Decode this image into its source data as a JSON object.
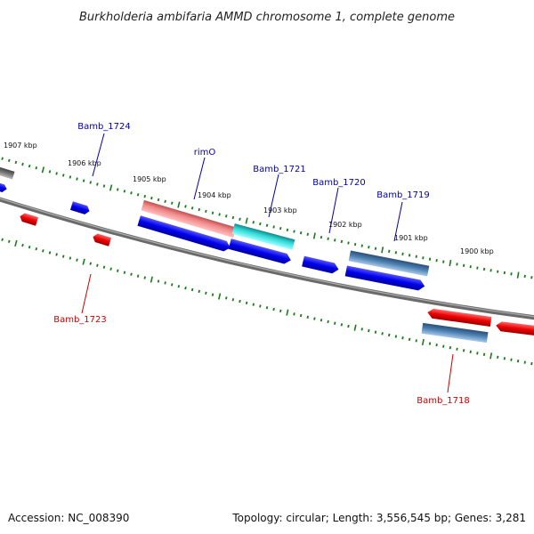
{
  "title": "Burkholderia ambifaria AMMD chromosome 1, complete genome",
  "footer": {
    "accession": "Accession: NC_008390",
    "stats": "Topology: circular; Length: 3,556,545 bp; Genes: 3,281"
  },
  "colors": {
    "forward_cds": "#0000ee",
    "reverse_cds": "#ee0000",
    "rrna_like": "#f08080",
    "trna_like": "#22cccc",
    "pseudo": "#4a7fb0",
    "backbone": "#808080",
    "ticks": "#1a7a1a",
    "label_forward": "#0000aa",
    "label_reverse": "#cc0000"
  },
  "tick_labels": [
    "1907 kbp",
    "1906 kbp",
    "1905 kbp",
    "1904 kbp",
    "1903 kbp",
    "1902 kbp",
    "1901 kbp",
    "1900 kbp"
  ],
  "gene_labels": [
    {
      "name": "Bamb_1724",
      "strand": "forward"
    },
    {
      "name": "rimO",
      "strand": "forward"
    },
    {
      "name": "Bamb_1721",
      "strand": "forward"
    },
    {
      "name": "Bamb_1720",
      "strand": "forward"
    },
    {
      "name": "Bamb_1719",
      "strand": "forward"
    },
    {
      "name": "Bamb_1723",
      "strand": "reverse"
    },
    {
      "name": "Bamb_1718",
      "strand": "reverse"
    }
  ]
}
